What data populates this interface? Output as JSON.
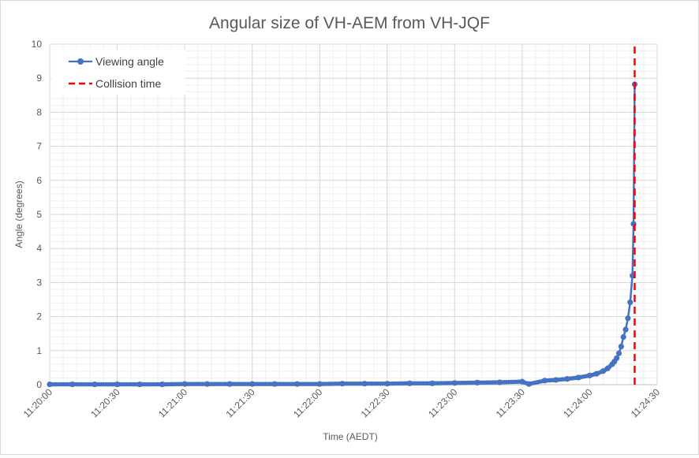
{
  "chart_data": {
    "type": "line",
    "title": "Angular size of VH-AEM from VH-JQF",
    "xlabel": "Time (AEDT)",
    "ylabel": "Angle (degrees)",
    "xlim": [
      "11:20:00",
      "11:24:30"
    ],
    "ylim": [
      0,
      10
    ],
    "x_ticks": [
      "11:20:00",
      "11:20:30",
      "11:21:00",
      "11:21:30",
      "11:22:00",
      "11:22:30",
      "11:23:00",
      "11:23:30",
      "11:24:00",
      "11:24:30"
    ],
    "y_ticks": [
      "0",
      "1",
      "2",
      "3",
      "4",
      "5",
      "6",
      "7",
      "8",
      "9",
      "10"
    ],
    "grid": true,
    "legend_position": "top-left",
    "series": [
      {
        "name": "Viewing angle",
        "color": "#4472c4",
        "marker": "circle",
        "points": [
          [
            "11:20:00",
            0.01
          ],
          [
            "11:20:10",
            0.01
          ],
          [
            "11:20:20",
            0.01
          ],
          [
            "11:20:30",
            0.01
          ],
          [
            "11:20:40",
            0.01
          ],
          [
            "11:20:50",
            0.01
          ],
          [
            "11:21:00",
            0.02
          ],
          [
            "11:21:10",
            0.02
          ],
          [
            "11:21:20",
            0.02
          ],
          [
            "11:21:30",
            0.02
          ],
          [
            "11:21:40",
            0.02
          ],
          [
            "11:21:50",
            0.02
          ],
          [
            "11:22:00",
            0.02
          ],
          [
            "11:22:10",
            0.03
          ],
          [
            "11:22:20",
            0.03
          ],
          [
            "11:22:30",
            0.03
          ],
          [
            "11:22:40",
            0.04
          ],
          [
            "11:22:50",
            0.04
          ],
          [
            "11:23:00",
            0.05
          ],
          [
            "11:23:10",
            0.06
          ],
          [
            "11:23:20",
            0.07
          ],
          [
            "11:23:30",
            0.09
          ],
          [
            "11:23:33",
            0.02
          ],
          [
            "11:23:40",
            0.12
          ],
          [
            "11:23:45",
            0.14
          ],
          [
            "11:23:50",
            0.17
          ],
          [
            "11:23:55",
            0.21
          ],
          [
            "11:24:00",
            0.27
          ],
          [
            "11:24:03",
            0.32
          ],
          [
            "11:24:06",
            0.4
          ],
          [
            "11:24:08",
            0.48
          ],
          [
            "11:24:10",
            0.6
          ],
          [
            "11:24:11",
            0.68
          ],
          [
            "11:24:12",
            0.78
          ],
          [
            "11:24:13",
            0.92
          ],
          [
            "11:24:14",
            1.12
          ],
          [
            "11:24:15",
            1.4
          ],
          [
            "11:24:16",
            1.62
          ],
          [
            "11:24:17",
            1.95
          ],
          [
            "11:24:18",
            2.42
          ],
          [
            "11:24:19",
            3.2
          ],
          [
            "11:24:19.5",
            4.72
          ],
          [
            "11:24:20",
            8.82
          ]
        ]
      },
      {
        "name": "Collision time",
        "color": "#ff0000",
        "style": "dashed",
        "x": "11:24:20",
        "y_range": [
          0,
          10
        ]
      }
    ]
  }
}
